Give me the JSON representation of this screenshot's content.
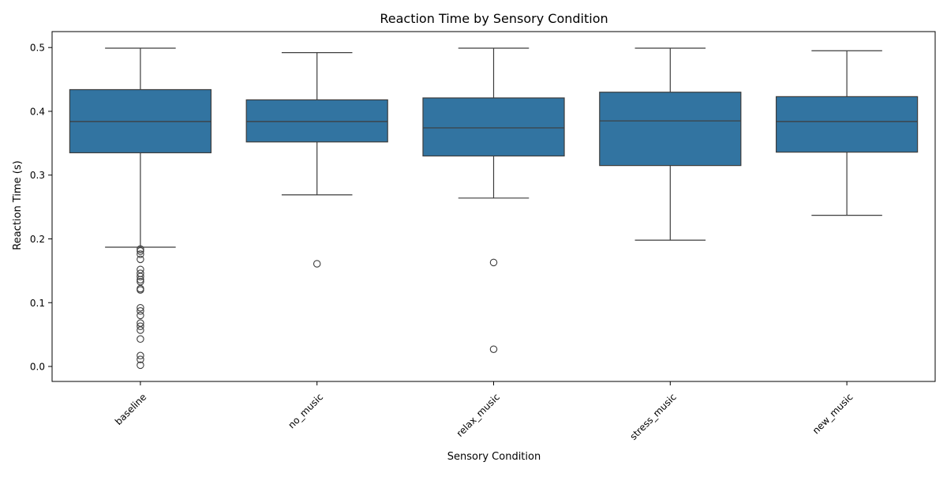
{
  "chart_data": {
    "type": "box",
    "title": "Reaction Time by Sensory Condition",
    "xlabel": "Sensory Condition",
    "ylabel": "Reaction Time (s)",
    "ylim": [
      -0.0235,
      0.525
    ],
    "yticks": [
      0.0,
      0.1,
      0.2,
      0.3,
      0.4,
      0.5
    ],
    "ytick_labels": [
      "0.0",
      "0.1",
      "0.2",
      "0.3",
      "0.4",
      "0.5"
    ],
    "categories": [
      "baseline",
      "no_music",
      "relax_music",
      "stress_music",
      "new_music"
    ],
    "color": "#3274a1",
    "edge_color": "#3d3d3d",
    "grid": false,
    "boxes": [
      {
        "category": "baseline",
        "whisker_low": 0.187,
        "q1": 0.335,
        "median": 0.384,
        "q3": 0.434,
        "whisker_high": 0.499,
        "outliers": [
          0.184,
          0.181,
          0.176,
          0.168,
          0.152,
          0.146,
          0.141,
          0.136,
          0.133,
          0.122,
          0.12,
          0.092,
          0.087,
          0.08,
          0.068,
          0.063,
          0.057,
          0.043,
          0.017,
          0.011,
          0.002
        ]
      },
      {
        "category": "no_music",
        "whisker_low": 0.269,
        "q1": 0.352,
        "median": 0.384,
        "q3": 0.418,
        "whisker_high": 0.492,
        "outliers": [
          0.161
        ]
      },
      {
        "category": "relax_music",
        "whisker_low": 0.264,
        "q1": 0.33,
        "median": 0.374,
        "q3": 0.421,
        "whisker_high": 0.499,
        "outliers": [
          0.163,
          0.027
        ]
      },
      {
        "category": "stress_music",
        "whisker_low": 0.198,
        "q1": 0.315,
        "median": 0.385,
        "q3": 0.43,
        "whisker_high": 0.499,
        "outliers": []
      },
      {
        "category": "new_music",
        "whisker_low": 0.237,
        "q1": 0.336,
        "median": 0.384,
        "q3": 0.423,
        "whisker_high": 0.495,
        "outliers": []
      }
    ]
  }
}
